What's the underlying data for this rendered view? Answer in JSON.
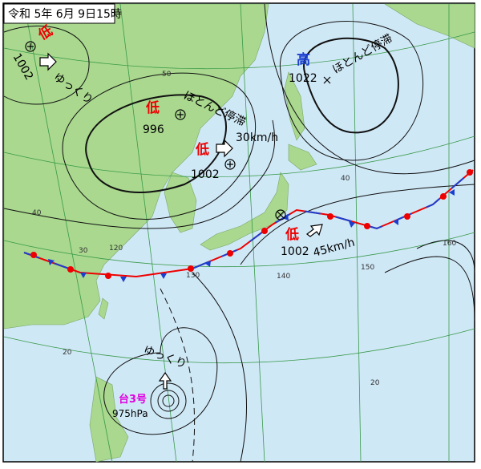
{
  "header": {
    "title": "令和 5年 6月 9日15時"
  },
  "systems": [
    {
      "kind": "低",
      "pressure": "1002",
      "motion": "ゆっくり"
    },
    {
      "kind": "低",
      "pressure": "996",
      "motion": "ほとんど停滞"
    },
    {
      "kind": "低",
      "pressure": "1002",
      "motion": "30km/h"
    },
    {
      "kind": "高",
      "pressure": "1022",
      "motion": "ほとんど停滞"
    },
    {
      "kind": "低",
      "pressure": "1002",
      "motion": "45km/h"
    }
  ],
  "typhoon": {
    "name": "台3号",
    "pressure": "975hPa",
    "motion": "ゆっくり"
  },
  "grid_labels": [
    "50",
    "40",
    "40",
    "30",
    "20",
    "20",
    "120",
    "130",
    "140",
    "150",
    "160"
  ]
}
